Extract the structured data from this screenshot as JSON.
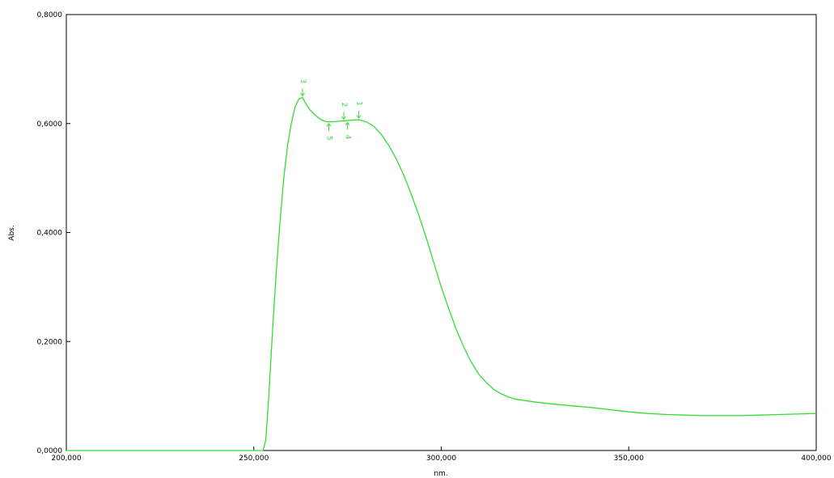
{
  "chart_data": {
    "type": "line",
    "xlabel": "nm.",
    "ylabel": "Abs.",
    "xlim": [
      200,
      400
    ],
    "ylim": [
      0,
      0.8
    ],
    "x_ticks": [
      {
        "value": 200,
        "label": "200,000"
      },
      {
        "value": 250,
        "label": "250,000"
      },
      {
        "value": 300,
        "label": "300,000"
      },
      {
        "value": 350,
        "label": "350,000"
      },
      {
        "value": 400,
        "label": "400,000"
      }
    ],
    "y_ticks": [
      {
        "value": 0,
        "label": "0,0000"
      },
      {
        "value": 0.2,
        "label": "0,2000"
      },
      {
        "value": 0.4,
        "label": "0,4000"
      },
      {
        "value": 0.6,
        "label": "0,6000"
      },
      {
        "value": 0.8,
        "label": "0,8000"
      }
    ],
    "grid": false,
    "color": "#33dd33",
    "series": [
      {
        "x": [
          200,
          230,
          252.5,
          253.2,
          254,
          255,
          256,
          257,
          258,
          259,
          260,
          261,
          262,
          263,
          264,
          265,
          266,
          267,
          268,
          269,
          270,
          272,
          274,
          276,
          278,
          280,
          282,
          284,
          286,
          288,
          290,
          292,
          294,
          296,
          298,
          300,
          302,
          304,
          306,
          308,
          310,
          312,
          314,
          316,
          318,
          320,
          323,
          326,
          330,
          335,
          340,
          345,
          350,
          355,
          360,
          365,
          370,
          375,
          380,
          385,
          390,
          395,
          400
        ],
        "y": [
          0,
          0,
          0,
          0.02,
          0.1,
          0.22,
          0.33,
          0.42,
          0.5,
          0.56,
          0.6,
          0.63,
          0.645,
          0.648,
          0.635,
          0.625,
          0.618,
          0.612,
          0.607,
          0.604,
          0.603,
          0.604,
          0.605,
          0.606,
          0.607,
          0.603,
          0.595,
          0.58,
          0.56,
          0.535,
          0.505,
          0.47,
          0.432,
          0.39,
          0.345,
          0.3,
          0.26,
          0.222,
          0.19,
          0.162,
          0.14,
          0.125,
          0.112,
          0.104,
          0.098,
          0.094,
          0.091,
          0.088,
          0.085,
          0.082,
          0.079,
          0.075,
          0.071,
          0.068,
          0.066,
          0.065,
          0.064,
          0.064,
          0.064,
          0.065,
          0.066,
          0.067,
          0.068
        ]
      }
    ],
    "peaks": [
      {
        "label": "3",
        "x": 263,
        "y": 0.648,
        "side": "above"
      },
      {
        "label": "5",
        "x": 270,
        "y": 0.603,
        "side": "below"
      },
      {
        "label": "2",
        "x": 274,
        "y": 0.605,
        "side": "above"
      },
      {
        "label": "4",
        "x": 275,
        "y": 0.605,
        "side": "below"
      },
      {
        "label": "1",
        "x": 278,
        "y": 0.607,
        "side": "above"
      }
    ]
  }
}
